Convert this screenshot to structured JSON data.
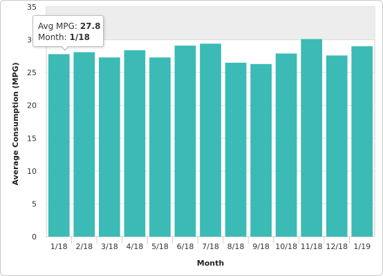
{
  "chart_data": {
    "type": "bar",
    "title": "",
    "xlabel": "Month",
    "ylabel": "Average Consumption (MPG)",
    "categories": [
      "1/18",
      "2/18",
      "3/18",
      "4/18",
      "5/18",
      "6/18",
      "7/18",
      "8/18",
      "9/18",
      "10/18",
      "11/18",
      "12/18",
      "1/19"
    ],
    "values": [
      27.8,
      28.1,
      27.3,
      28.4,
      27.3,
      29.1,
      29.4,
      26.5,
      26.3,
      27.9,
      30.1,
      27.6,
      29.0
    ],
    "ylim": [
      0,
      35
    ],
    "yticks": [
      0,
      5,
      10,
      15,
      20,
      25,
      30,
      35
    ],
    "grid": true,
    "bar_color": "#3cbab5",
    "tooltip": {
      "series_label": "Avg MPG:",
      "series_value": "27.8",
      "category_label": "Month:",
      "category_value": "1/18"
    }
  }
}
